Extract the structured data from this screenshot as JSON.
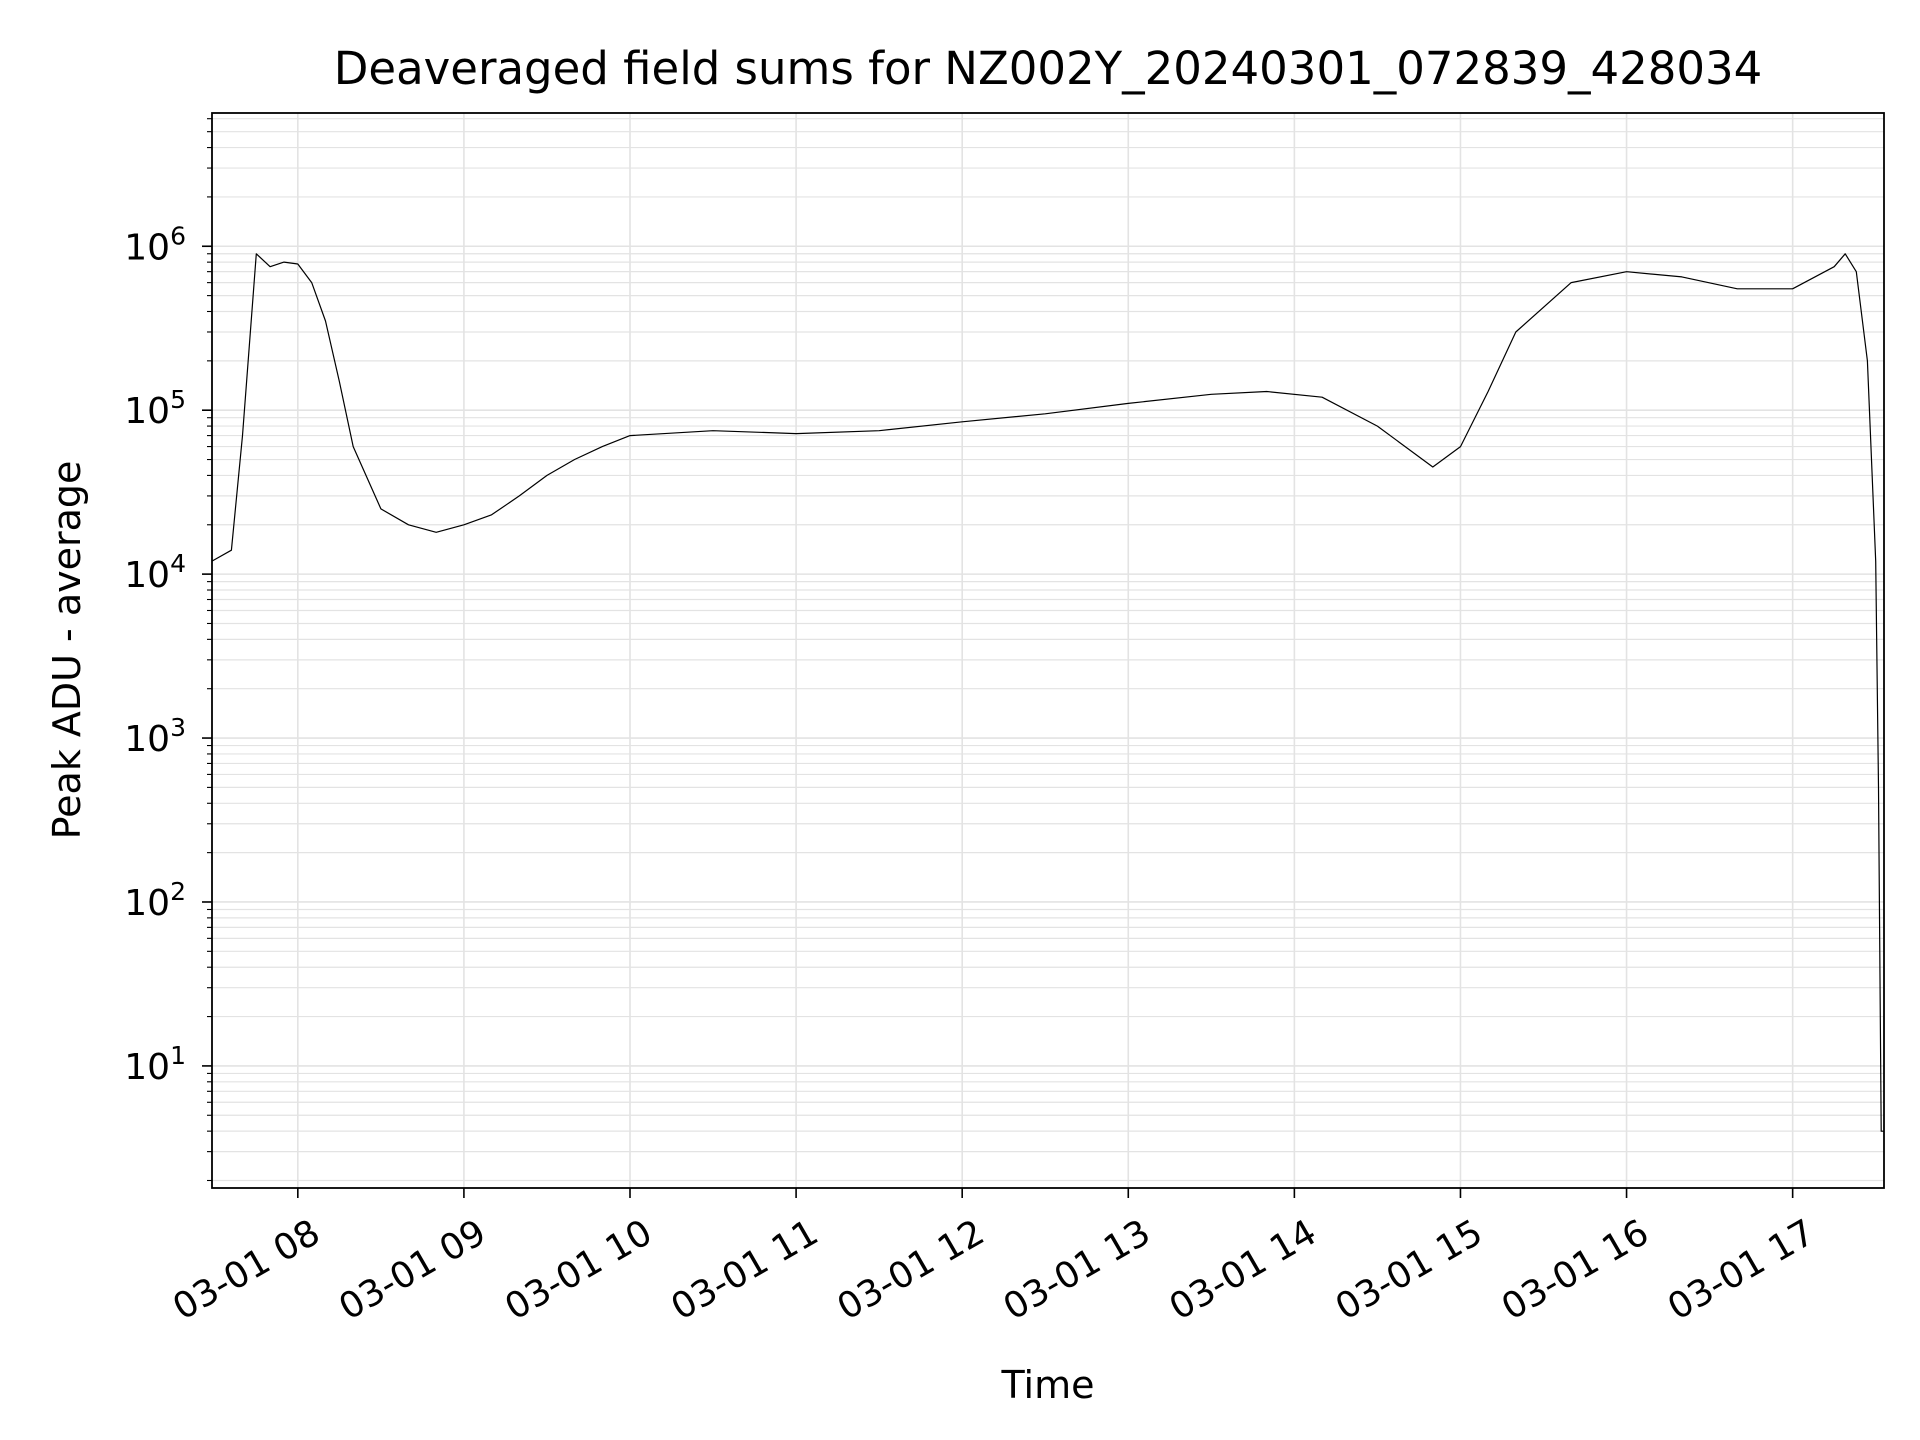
{
  "chart_data": {
    "type": "line",
    "title": "Deaveraged field sums for NZ002Y_20240301_072839_428034",
    "xlabel": "Time",
    "ylabel": "Peak ADU - average",
    "yscale": "log",
    "xlim": [
      "2024-03-01 07:29:00",
      "2024-03-01 17:33:00"
    ],
    "ylim": [
      1.8,
      6500000
    ],
    "grid": true,
    "grid_minor": true,
    "line_color": "#000000",
    "x_ticks": [
      "03-01 08",
      "03-01 09",
      "03-01 10",
      "03-01 11",
      "03-01 12",
      "03-01 13",
      "03-01 14",
      "03-01 15",
      "03-01 16",
      "03-01 17"
    ],
    "y_ticks": [
      {
        "base": "10",
        "exp": "1",
        "value": 10
      },
      {
        "base": "10",
        "exp": "2",
        "value": 100
      },
      {
        "base": "10",
        "exp": "3",
        "value": 1000
      },
      {
        "base": "10",
        "exp": "4",
        "value": 10000
      },
      {
        "base": "10",
        "exp": "5",
        "value": 100000
      },
      {
        "base": "10",
        "exp": "6",
        "value": 1000000
      }
    ],
    "series": [
      {
        "x": [
          "2024-03-01 07:29:00",
          "2024-03-01 07:36:00",
          "2024-03-01 07:40:00",
          "2024-03-01 07:45:00",
          "2024-03-01 07:50:00",
          "2024-03-01 07:55:00",
          "2024-03-01 08:00:00",
          "2024-03-01 08:05:00",
          "2024-03-01 08:10:00",
          "2024-03-01 08:15:00",
          "2024-03-01 08:20:00",
          "2024-03-01 08:30:00",
          "2024-03-01 08:40:00",
          "2024-03-01 08:50:00",
          "2024-03-01 09:00:00",
          "2024-03-01 09:10:00",
          "2024-03-01 09:20:00",
          "2024-03-01 09:30:00",
          "2024-03-01 09:40:00",
          "2024-03-01 09:50:00",
          "2024-03-01 10:00:00",
          "2024-03-01 10:30:00",
          "2024-03-01 11:00:00",
          "2024-03-01 11:30:00",
          "2024-03-01 12:00:00",
          "2024-03-01 12:30:00",
          "2024-03-01 13:00:00",
          "2024-03-01 13:30:00",
          "2024-03-01 13:50:00",
          "2024-03-01 14:10:00",
          "2024-03-01 14:30:00",
          "2024-03-01 14:50:00",
          "2024-03-01 15:00:00",
          "2024-03-01 15:10:00",
          "2024-03-01 15:20:00",
          "2024-03-01 15:40:00",
          "2024-03-01 16:00:00",
          "2024-03-01 16:20:00",
          "2024-03-01 16:40:00",
          "2024-03-01 17:00:00",
          "2024-03-01 17:15:00",
          "2024-03-01 17:19:00",
          "2024-03-01 17:23:00",
          "2024-03-01 17:27:00",
          "2024-03-01 17:30:00",
          "2024-03-01 17:31:00",
          "2024-03-01 17:32:00",
          "2024-03-01 17:33:00"
        ],
        "y": [
          12000,
          14000,
          70000,
          900000,
          750000,
          800000,
          780000,
          600000,
          350000,
          150000,
          60000,
          25000,
          20000,
          18000,
          20000,
          23000,
          30000,
          40000,
          50000,
          60000,
          70000,
          75000,
          72000,
          75000,
          85000,
          95000,
          110000,
          125000,
          130000,
          120000,
          80000,
          45000,
          60000,
          130000,
          300000,
          600000,
          700000,
          650000,
          550000,
          550000,
          750000,
          900000,
          700000,
          200000,
          12000,
          500,
          4,
          4
        ]
      }
    ]
  }
}
